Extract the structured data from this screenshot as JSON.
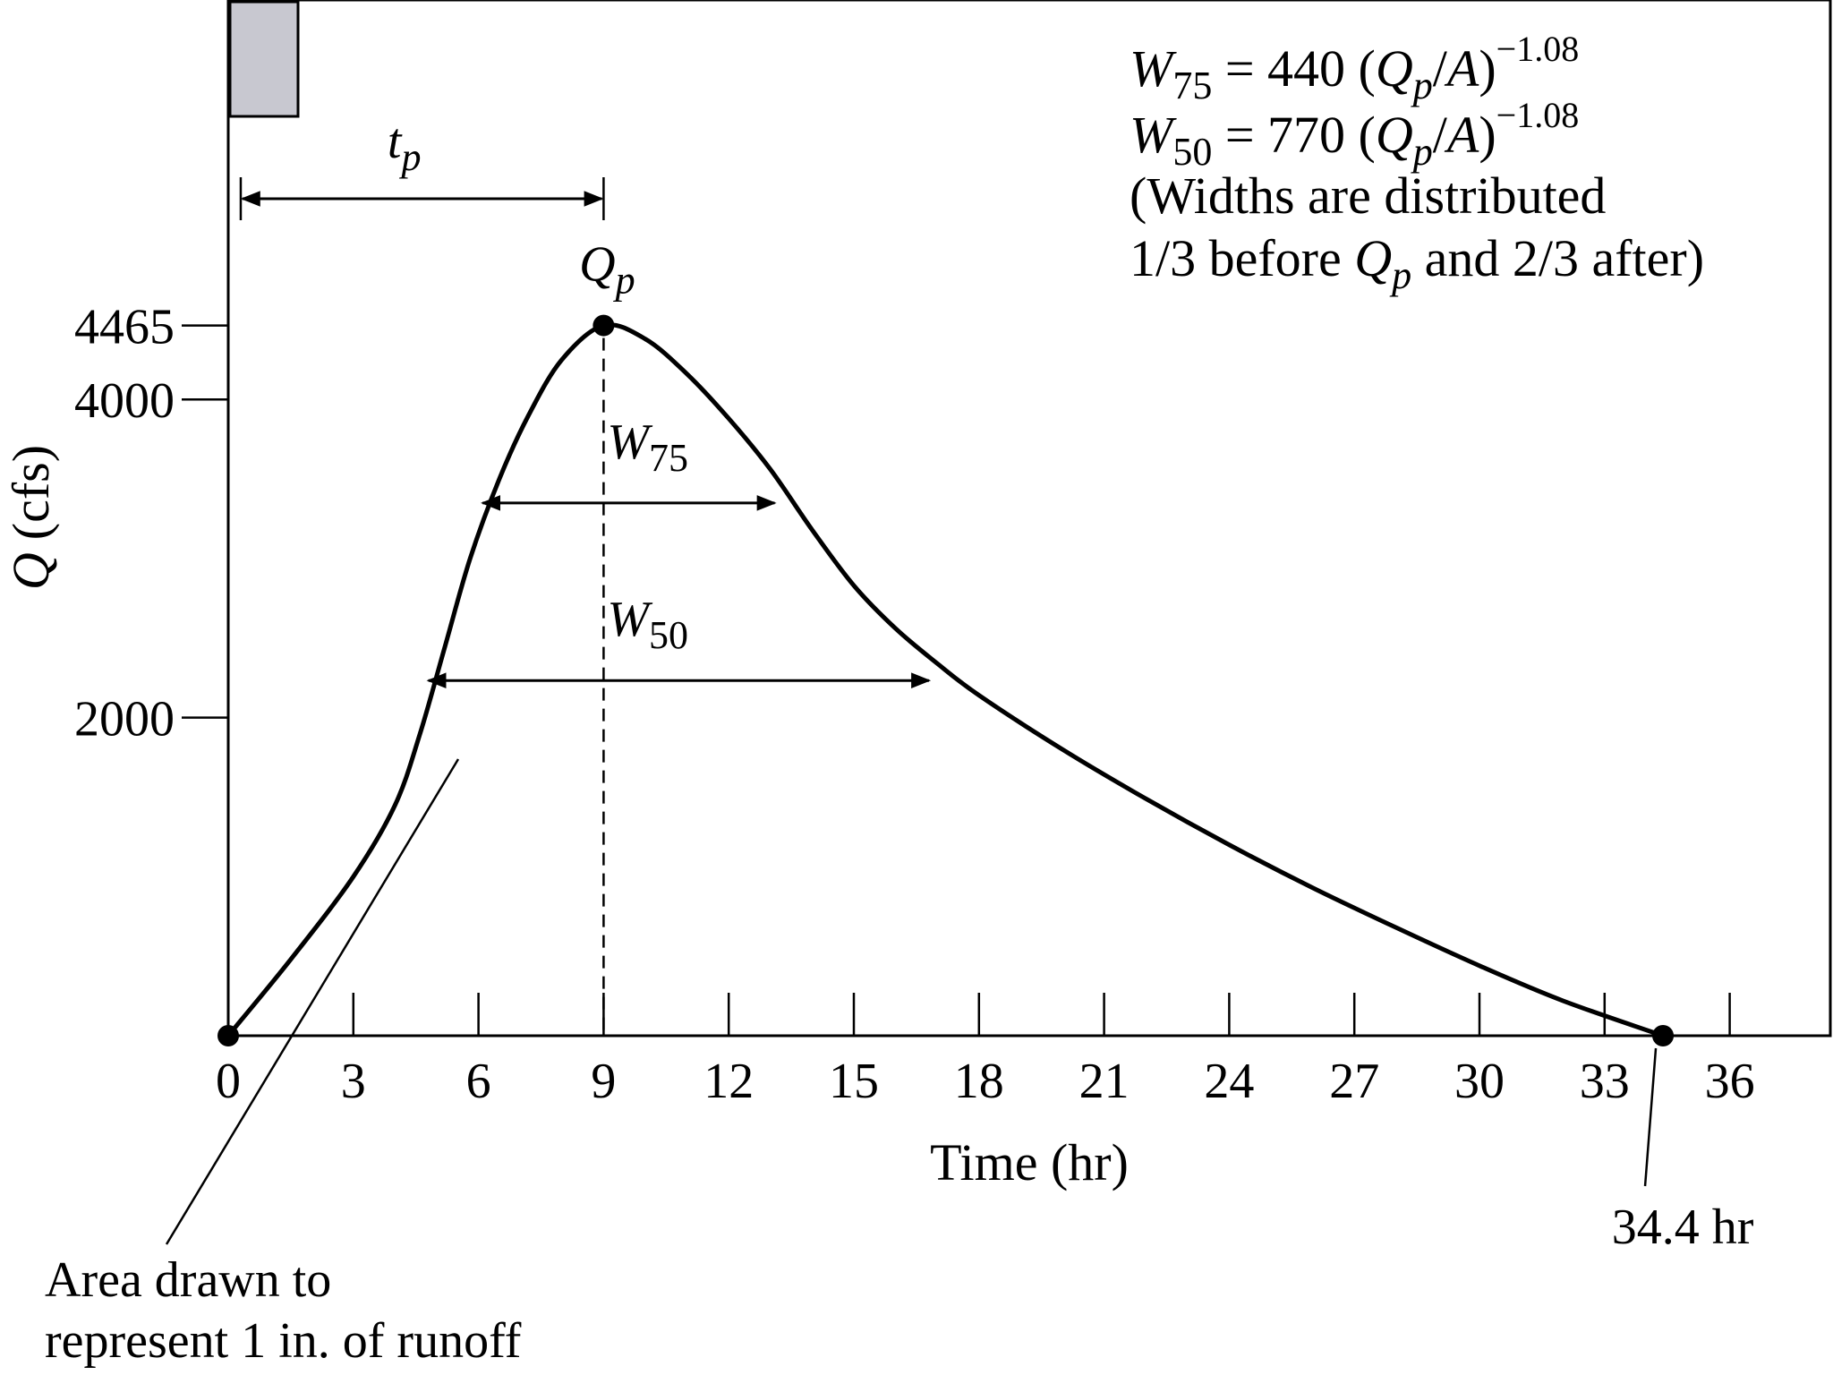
{
  "chart_data": {
    "type": "line",
    "title": "",
    "xlabel": "Time (hr)",
    "ylabel_var": "Q",
    "ylabel_unit": "(cfs)",
    "xlim": [
      0,
      36
    ],
    "ylim": [
      0,
      4465
    ],
    "x_ticks": [
      0,
      3,
      6,
      9,
      12,
      15,
      18,
      21,
      24,
      27,
      30,
      33,
      36
    ],
    "x_tick_labels": [
      "0",
      "3",
      "6",
      "9",
      "12",
      "15",
      "18",
      "21",
      "24",
      "27",
      "30",
      "33",
      "36"
    ],
    "y_ticks": [
      2000,
      4000,
      4465
    ],
    "y_tick_labels": [
      "2000",
      "4000",
      "4465"
    ],
    "grid": false,
    "series": [
      {
        "x": [
          0,
          1.5,
          3,
          4,
          4.6,
          5.2,
          5.8,
          6.5,
          7.2,
          8,
          9,
          10,
          11,
          12,
          13,
          14,
          15,
          16,
          17,
          18,
          20,
          22,
          24,
          26,
          28,
          30,
          32,
          34.4
        ],
        "y": [
          0,
          480,
          1000,
          1450,
          1900,
          2450,
          3000,
          3500,
          3900,
          4250,
          4465,
          4380,
          4160,
          3880,
          3560,
          3180,
          2830,
          2560,
          2340,
          2140,
          1800,
          1490,
          1200,
          930,
          680,
          440,
          220,
          0
        ]
      }
    ],
    "peak": {
      "x": 9,
      "y": 4465,
      "label_var": "Q",
      "label_sub": "p"
    },
    "end_point": {
      "x": 34.4,
      "y": 0,
      "label": "34.4 hr"
    },
    "time_to_peak": {
      "from_x": 0.3,
      "to_x": 9,
      "label_var": "t",
      "label_sub": "p"
    },
    "widths": [
      {
        "name_var": "W",
        "name_sub": "75",
        "y": 3349,
        "x_left": 6.1,
        "x_right": 13.1
      },
      {
        "name_var": "W",
        "name_sub": "50",
        "y": 2233,
        "x_left": 4.8,
        "x_right": 16.8
      }
    ],
    "rainfall_block": {
      "x_start": 0,
      "x_end": 1.6
    },
    "annotations": {
      "eq1": {
        "lhs_var": "W",
        "lhs_sub": "75",
        "rhs_pre": " = 440 (",
        "rhs_q": "Q",
        "rhs_qsub": "p",
        "rhs_post": "/",
        "rhs_a": "A",
        "rhs_close": ")",
        "exp": "−1.08"
      },
      "eq2": {
        "lhs_var": "W",
        "lhs_sub": "50",
        "rhs_pre": " = 770 (",
        "rhs_q": "Q",
        "rhs_qsub": "p",
        "rhs_post": "/",
        "rhs_a": "A",
        "rhs_close": ")",
        "exp": "−1.08"
      },
      "note_line1": "(Widths are distributed",
      "note_line2_pre": "1/3 before ",
      "note_line2_q": "Q",
      "note_line2_qsub": "p",
      "note_line2_post": " and 2/3 after)",
      "area_line1": "Area drawn to",
      "area_line2": "represent 1 in. of runoff"
    },
    "colors": {
      "line": "#000000",
      "rainfall_block": "#c8c8d0"
    }
  }
}
